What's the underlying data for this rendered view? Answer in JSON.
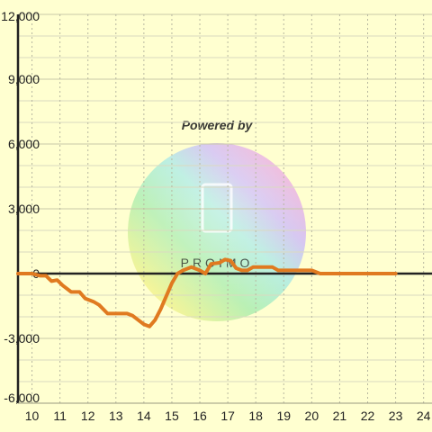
{
  "chart_data": {
    "type": "line",
    "title": "",
    "xlabel": "",
    "ylabel": "",
    "xlim": [
      9.5,
      24.3
    ],
    "ylim": [
      -6000,
      12000
    ],
    "y_ticks": [
      12000,
      9000,
      6000,
      3000,
      0,
      -3000,
      -6000
    ],
    "y_tick_labels": [
      "12,000",
      "9,000",
      "6,000",
      "3,000",
      "0",
      "-3,000",
      "-6,000"
    ],
    "x_ticks": [
      10,
      11,
      12,
      13,
      14,
      15,
      16,
      17,
      18,
      19,
      20,
      21,
      22,
      23,
      24
    ],
    "x_tick_labels": [
      "10",
      "11",
      "12",
      "13",
      "14",
      "15",
      "16",
      "17",
      "18",
      "19",
      "20",
      "21",
      "22",
      "23",
      "24"
    ],
    "grid": true,
    "line_color": "#e07a20",
    "series": [
      {
        "name": "",
        "points": [
          [
            9.5,
            0
          ],
          [
            10.0,
            0
          ],
          [
            10.3,
            -100
          ],
          [
            10.5,
            -100
          ],
          [
            10.7,
            -350
          ],
          [
            10.9,
            -300
          ],
          [
            11.1,
            -550
          ],
          [
            11.4,
            -850
          ],
          [
            11.7,
            -850
          ],
          [
            11.9,
            -1150
          ],
          [
            12.2,
            -1300
          ],
          [
            12.4,
            -1450
          ],
          [
            12.7,
            -1850
          ],
          [
            13.0,
            -1850
          ],
          [
            13.4,
            -1850
          ],
          [
            13.6,
            -1950
          ],
          [
            13.8,
            -2150
          ],
          [
            14.0,
            -2350
          ],
          [
            14.2,
            -2450
          ],
          [
            14.4,
            -2150
          ],
          [
            14.6,
            -1650
          ],
          [
            14.8,
            -1050
          ],
          [
            15.0,
            -450
          ],
          [
            15.2,
            0
          ],
          [
            15.4,
            150
          ],
          [
            15.7,
            300
          ],
          [
            16.0,
            150
          ],
          [
            16.2,
            0
          ],
          [
            16.4,
            450
          ],
          [
            16.7,
            500
          ],
          [
            16.9,
            650
          ],
          [
            17.1,
            600
          ],
          [
            17.3,
            250
          ],
          [
            17.5,
            150
          ],
          [
            17.7,
            150
          ],
          [
            17.9,
            300
          ],
          [
            18.3,
            300
          ],
          [
            18.6,
            300
          ],
          [
            18.8,
            150
          ],
          [
            19.2,
            150
          ],
          [
            19.6,
            150
          ],
          [
            20.0,
            150
          ],
          [
            20.3,
            0
          ],
          [
            21.0,
            0
          ],
          [
            22.0,
            0
          ],
          [
            23.0,
            0
          ]
        ]
      }
    ]
  },
  "watermark": {
    "title": "Powered by",
    "logo_text": "PROIMO"
  }
}
